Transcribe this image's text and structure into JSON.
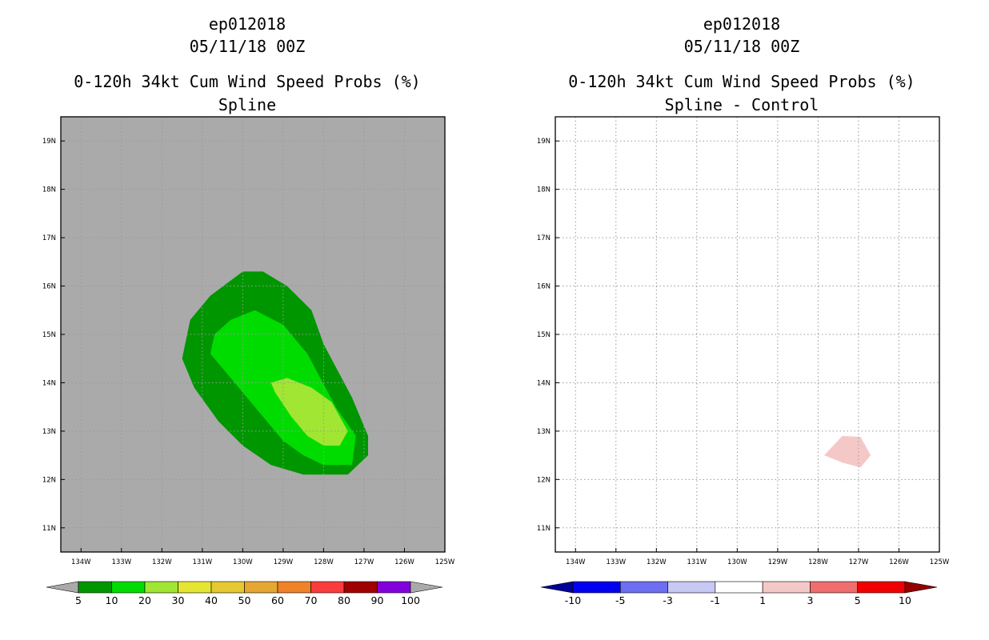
{
  "panels": [
    {
      "storm_id": "ep012018",
      "datetime": "05/11/18 00Z",
      "product": "0-120h 34kt Cum Wind Speed Probs (%)",
      "subtitle": "Spline",
      "background_color": "#aaaaaa",
      "grid": true
    },
    {
      "storm_id": "ep012018",
      "datetime": "05/11/18 00Z",
      "product": "0-120h 34kt Cum Wind Speed Probs (%)",
      "subtitle": "Spline - Control",
      "background_color": "#ffffff",
      "grid": true
    }
  ],
  "chart_data": [
    {
      "type": "contour-map",
      "title": "0-120h 34kt Cum Wind Speed Probs (%) - Spline",
      "xlim": [
        -134.5,
        -125
      ],
      "ylim": [
        10.5,
        19.5
      ],
      "x_ticks": [
        {
          "lon": -134,
          "label": "134W"
        },
        {
          "lon": -133,
          "label": "133W"
        },
        {
          "lon": -132,
          "label": "132W"
        },
        {
          "lon": -131,
          "label": "131W"
        },
        {
          "lon": -130,
          "label": "130W"
        },
        {
          "lon": -129,
          "label": "129W"
        },
        {
          "lon": -128,
          "label": "128W"
        },
        {
          "lon": -127,
          "label": "127W"
        },
        {
          "lon": -126,
          "label": "126W"
        },
        {
          "lon": -125,
          "label": "125W"
        }
      ],
      "y_ticks": [
        {
          "lat": 11,
          "label": "11N"
        },
        {
          "lat": 12,
          "label": "12N"
        },
        {
          "lat": 13,
          "label": "13N"
        },
        {
          "lat": 14,
          "label": "14N"
        },
        {
          "lat": 15,
          "label": "15N"
        },
        {
          "lat": 16,
          "label": "16N"
        },
        {
          "lat": 17,
          "label": "17N"
        },
        {
          "lat": 18,
          "label": "18N"
        },
        {
          "lat": 19,
          "label": "19N"
        }
      ],
      "contours": [
        {
          "level": 5,
          "color": "#009600",
          "polygon": [
            [
              -130.0,
              16.3
            ],
            [
              -129.5,
              16.3
            ],
            [
              -128.9,
              16.0
            ],
            [
              -128.3,
              15.5
            ],
            [
              -128.0,
              14.8
            ],
            [
              -127.3,
              13.7
            ],
            [
              -126.9,
              12.9
            ],
            [
              -126.9,
              12.5
            ],
            [
              -127.4,
              12.1
            ],
            [
              -128.5,
              12.1
            ],
            [
              -129.3,
              12.3
            ],
            [
              -130.0,
              12.7
            ],
            [
              -130.6,
              13.2
            ],
            [
              -131.2,
              13.9
            ],
            [
              -131.5,
              14.5
            ],
            [
              -131.3,
              15.3
            ],
            [
              -130.8,
              15.8
            ]
          ]
        },
        {
          "level": 10,
          "color": "#00dc00",
          "polygon": [
            [
              -129.7,
              15.5
            ],
            [
              -129.0,
              15.2
            ],
            [
              -128.4,
              14.6
            ],
            [
              -127.7,
              13.5
            ],
            [
              -127.2,
              12.9
            ],
            [
              -127.3,
              12.3
            ],
            [
              -128.0,
              12.3
            ],
            [
              -128.5,
              12.5
            ],
            [
              -129.0,
              12.8
            ],
            [
              -129.5,
              13.3
            ],
            [
              -130.3,
              14.1
            ],
            [
              -130.8,
              14.6
            ],
            [
              -130.7,
              15.0
            ],
            [
              -130.3,
              15.3
            ]
          ]
        },
        {
          "level": 20,
          "color": "#a0e632",
          "polygon": [
            [
              -128.9,
              14.1
            ],
            [
              -128.3,
              13.9
            ],
            [
              -127.8,
              13.6
            ],
            [
              -127.4,
              13.0
            ],
            [
              -127.6,
              12.7
            ],
            [
              -128.0,
              12.7
            ],
            [
              -128.4,
              12.9
            ],
            [
              -128.8,
              13.3
            ],
            [
              -129.2,
              13.8
            ],
            [
              -129.3,
              14.0
            ]
          ]
        }
      ],
      "colorbar": {
        "levels": [
          "5",
          "10",
          "20",
          "30",
          "40",
          "50",
          "60",
          "70",
          "80",
          "90",
          "100"
        ],
        "colors": [
          "#aaaaaa",
          "#009600",
          "#00dc00",
          "#a0e632",
          "#e6e632",
          "#e6c832",
          "#e6a632",
          "#f08228",
          "#fa3c3c",
          "#a00000",
          "#8200dc",
          "#aaaaaa"
        ]
      }
    },
    {
      "type": "contour-map",
      "title": "0-120h 34kt Cum Wind Speed Probs (%) - Spline - Control",
      "xlim": [
        -134.5,
        -125
      ],
      "ylim": [
        10.5,
        19.5
      ],
      "x_ticks": [
        {
          "lon": -134,
          "label": "134W"
        },
        {
          "lon": -133,
          "label": "133W"
        },
        {
          "lon": -132,
          "label": "132W"
        },
        {
          "lon": -131,
          "label": "131W"
        },
        {
          "lon": -130,
          "label": "130W"
        },
        {
          "lon": -129,
          "label": "129W"
        },
        {
          "lon": -128,
          "label": "128W"
        },
        {
          "lon": -127,
          "label": "127W"
        },
        {
          "lon": -126,
          "label": "126W"
        },
        {
          "lon": -125,
          "label": "125W"
        }
      ],
      "y_ticks": [
        {
          "lat": 11,
          "label": "11N"
        },
        {
          "lat": 12,
          "label": "12N"
        },
        {
          "lat": 13,
          "label": "13N"
        },
        {
          "lat": 14,
          "label": "14N"
        },
        {
          "lat": 15,
          "label": "15N"
        },
        {
          "lat": 16,
          "label": "16N"
        },
        {
          "lat": 17,
          "label": "17N"
        },
        {
          "lat": 18,
          "label": "18N"
        },
        {
          "lat": 19,
          "label": "19N"
        }
      ],
      "contours": [
        {
          "level": 1,
          "color": "#f5c8c8",
          "polygon": [
            [
              -127.4,
              12.9
            ],
            [
              -126.95,
              12.88
            ],
            [
              -126.7,
              12.5
            ],
            [
              -126.95,
              12.25
            ],
            [
              -127.4,
              12.35
            ],
            [
              -127.85,
              12.5
            ]
          ]
        }
      ],
      "colorbar": {
        "levels": [
          "-10",
          "-5",
          "-3",
          "-1",
          "1",
          "3",
          "5",
          "10"
        ],
        "colors": [
          "#000096",
          "#0000f0",
          "#6e6ef0",
          "#c8c8f5",
          "#ffffff",
          "#f5c8c8",
          "#f06e6e",
          "#f00000",
          "#960000"
        ]
      }
    }
  ]
}
